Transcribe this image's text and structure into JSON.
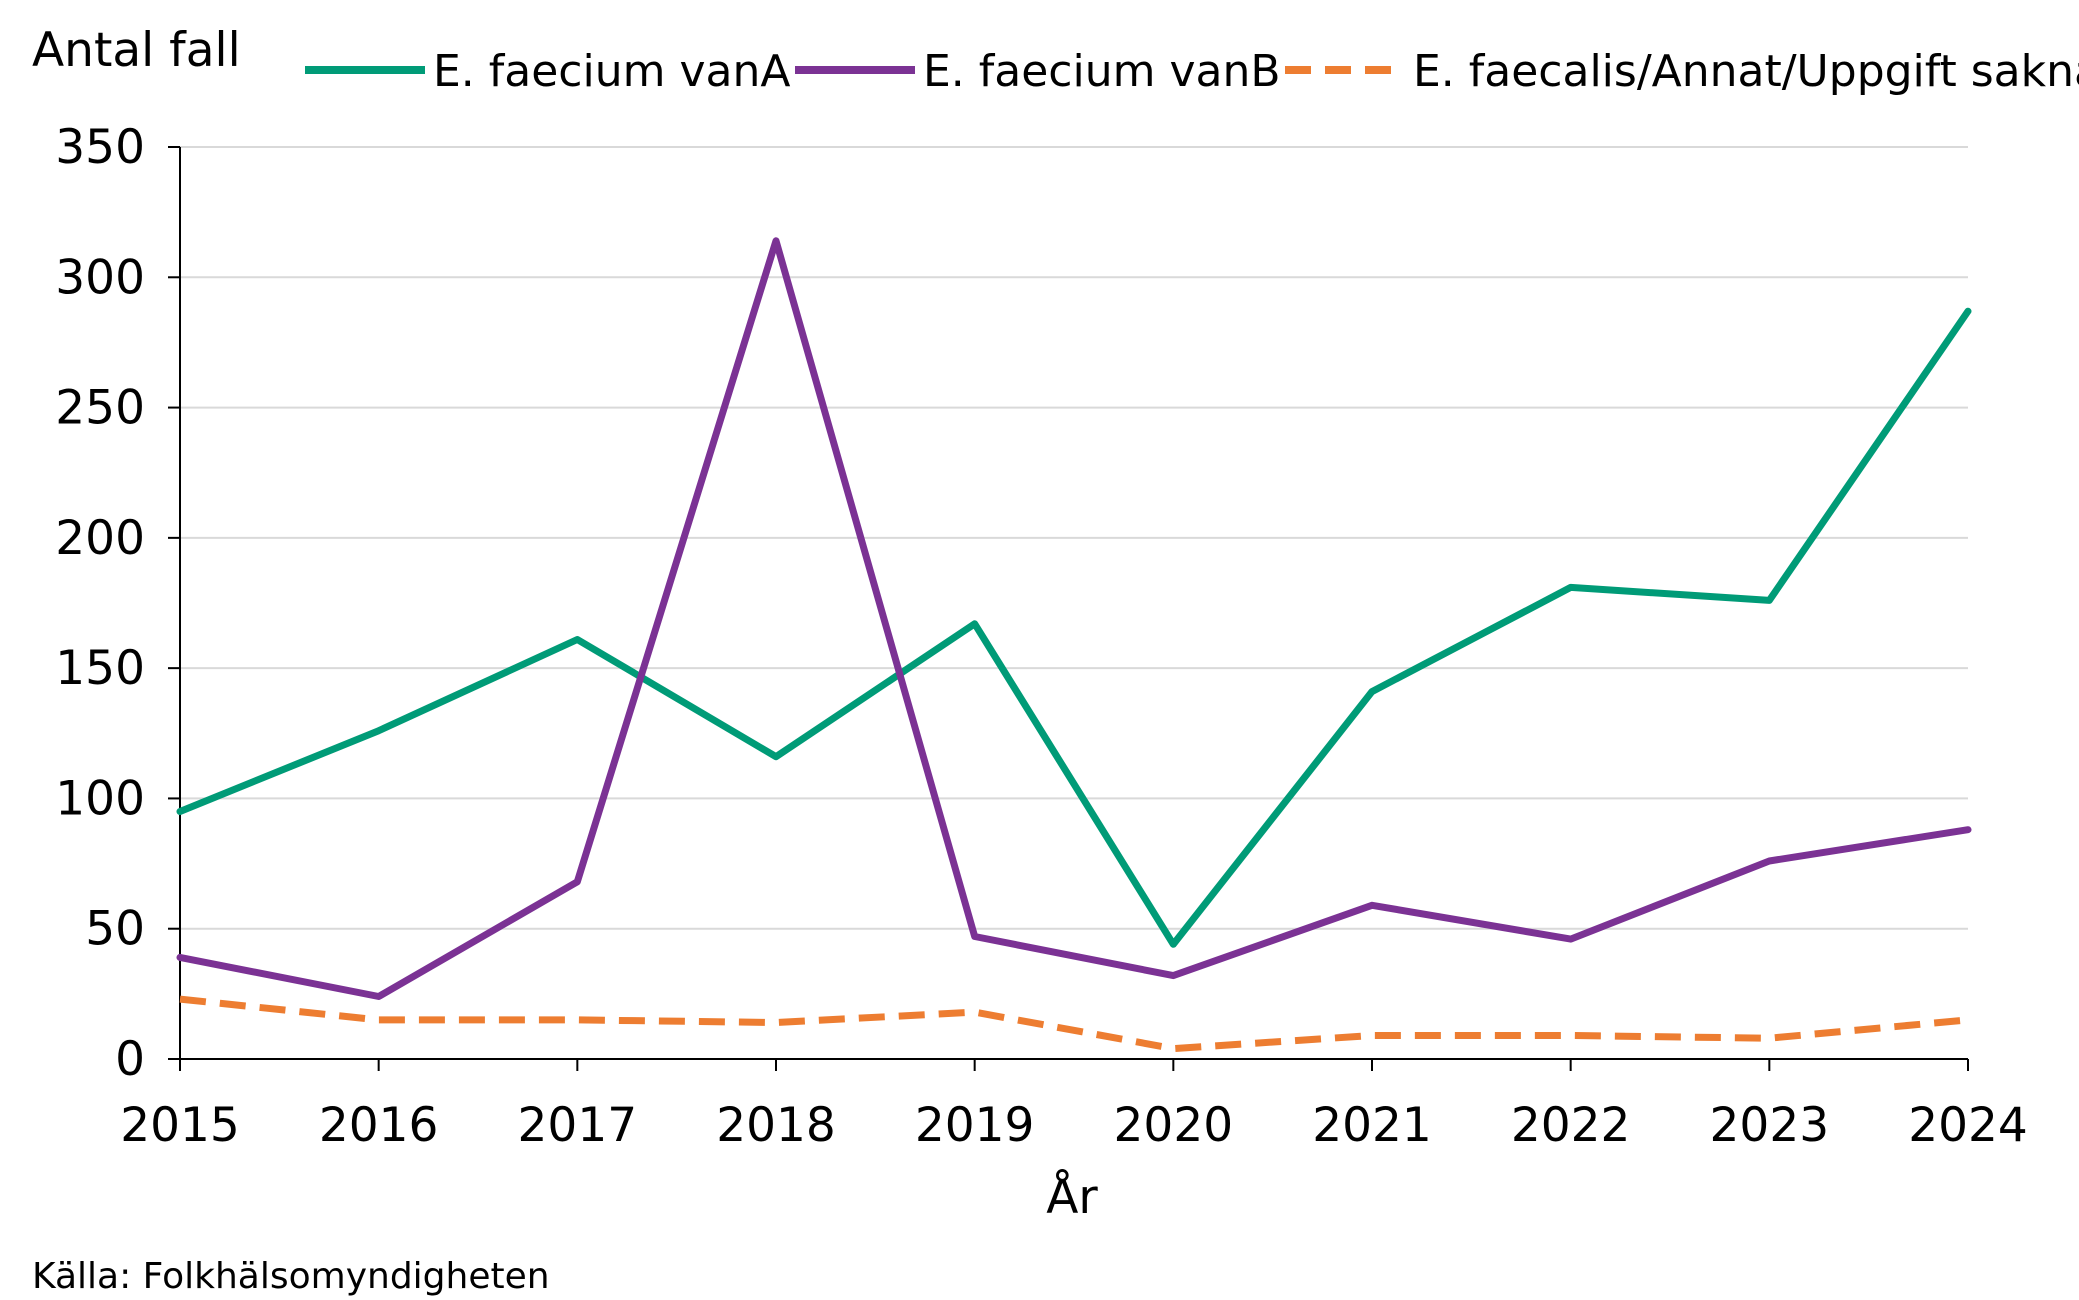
{
  "chart_data": {
    "type": "line",
    "ylabel": "Antal fall",
    "xlabel": "År",
    "source": "Källa: Folkhälsomyndigheten",
    "x": [
      2015,
      2016,
      2017,
      2018,
      2019,
      2020,
      2021,
      2022,
      2023,
      2024
    ],
    "ylim": [
      0,
      350
    ],
    "yticks": [
      0,
      50,
      100,
      150,
      200,
      250,
      300,
      350
    ],
    "grid": true,
    "legend_position": "top",
    "series": [
      {
        "name": "E. faecium vanA",
        "color": "#009B77",
        "dash": "solid",
        "values": [
          95,
          126,
          161,
          116,
          167,
          44,
          141,
          181,
          176,
          287
        ]
      },
      {
        "name": "E. faecium vanB",
        "color": "#7B3294",
        "dash": "solid",
        "values": [
          39,
          24,
          68,
          314,
          47,
          32,
          59,
          46,
          76,
          88
        ]
      },
      {
        "name": "E. faecalis/Annat/Uppgift saknas",
        "color": "#ED7D31",
        "dash": "dashed",
        "values": [
          23,
          15,
          15,
          14,
          18,
          4,
          9,
          9,
          8,
          15
        ]
      }
    ]
  }
}
